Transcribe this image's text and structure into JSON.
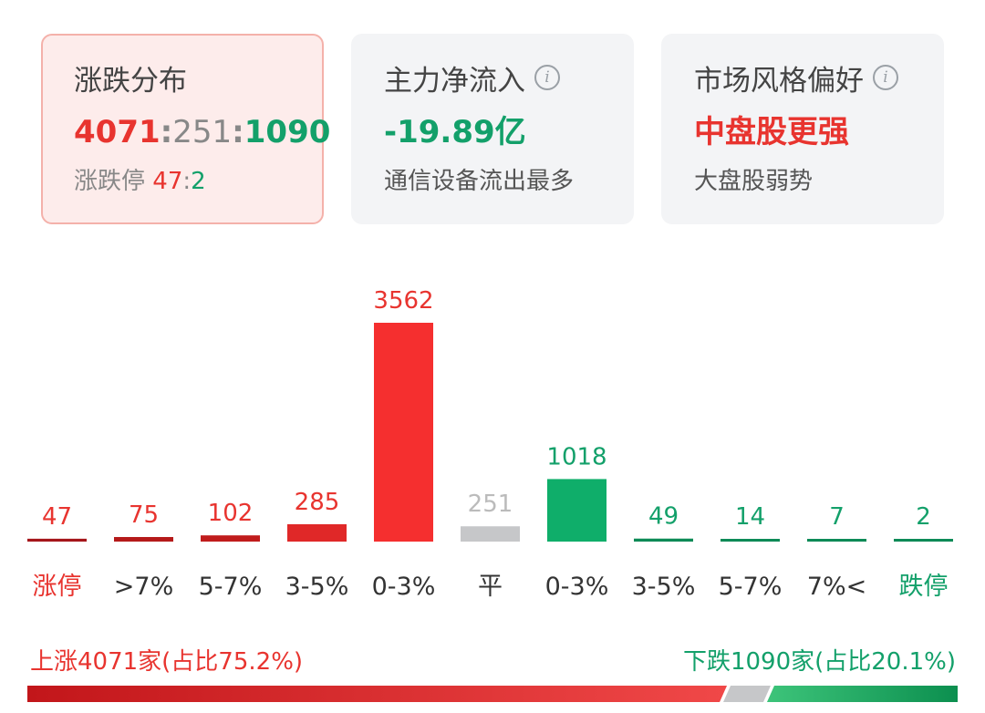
{
  "cards": [
    {
      "title": "涨跌分布",
      "ratio": {
        "up": "4071",
        "flat": "251",
        "down": "1090",
        "sep": ":"
      },
      "limit_label": "涨跌停",
      "limit_up": "47",
      "limit_down": "2"
    },
    {
      "title": "主力净流入",
      "value": "-19.89亿",
      "sub": "通信设备流出最多",
      "info_icon": "info-icon"
    },
    {
      "title": "市场风格偏好",
      "value": "中盘股更强",
      "sub": "大盘股弱势",
      "info_icon": "info-icon"
    }
  ],
  "colors": {
    "red_dark": "#b51a1a",
    "red": "#e8342f",
    "red_bright": "#f52f2f",
    "gray": "#c6c7c9",
    "green": "#0fae6a",
    "green_dark": "#0d8a57"
  },
  "chart_data": {
    "type": "bar",
    "categories": [
      "涨停",
      ">7%",
      "5-7%",
      "3-5%",
      "0-3%",
      "平",
      "0-3%",
      "3-5%",
      "5-7%",
      "7%<",
      "跌停"
    ],
    "values": [
      47,
      75,
      102,
      285,
      3562,
      251,
      1018,
      49,
      14,
      7,
      2
    ],
    "bar_colors": [
      "#a5161a",
      "#b51a1a",
      "#c01c1c",
      "#e02828",
      "#f52f2f",
      "#c6c7c9",
      "#0fae6a",
      "#0d8a57",
      "#0d8a57",
      "#0d8a57",
      "#0d8a57"
    ],
    "label_colors": [
      "#e8342f",
      "#e8342f",
      "#e8342f",
      "#e8342f",
      "#e8342f",
      "#bbbbbb",
      "#13a06a",
      "#13a06a",
      "#13a06a",
      "#13a06a",
      "#13a06a"
    ],
    "category_colors": [
      "#e8342f",
      "#333333",
      "#333333",
      "#333333",
      "#333333",
      "#333333",
      "#333333",
      "#333333",
      "#333333",
      "#333333",
      "#13a06a"
    ]
  },
  "stats": {
    "up_text": "上涨4071家(占比75.2%)",
    "down_text": "下跌1090家(占比20.1%)",
    "up_pct": 75.2,
    "down_pct": 20.1
  }
}
